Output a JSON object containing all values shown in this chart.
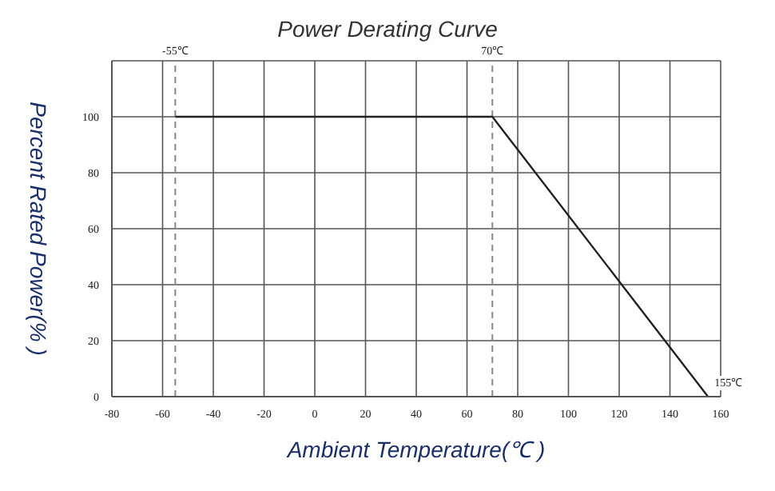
{
  "chart_data": {
    "type": "line",
    "title": "Power Derating Curve",
    "xlabel": "Ambient Temperature(℃ )",
    "ylabel": "Percent  Rated Power(% )",
    "x": [
      -55,
      70,
      155
    ],
    "series": [
      {
        "color": "#222222",
        "values": [
          100,
          100,
          0
        ]
      }
    ],
    "xlim": [
      -80,
      160
    ],
    "xticks": [
      -80,
      -60,
      -40,
      -20,
      0,
      20,
      40,
      60,
      80,
      100,
      120,
      140,
      160
    ],
    "ylim": [
      0,
      120
    ],
    "yticks": [
      0,
      20,
      40,
      60,
      80,
      100,
      {
        "value": 120,
        "label": null
      }
    ],
    "grid": true,
    "marker": "none",
    "line_style": "solid",
    "ref_lines": [
      {
        "axis": "x",
        "value": -55,
        "label": "-55℃",
        "color": "#888888",
        "line_style": "dashed"
      },
      {
        "axis": "x",
        "value": 70,
        "label": "70℃",
        "color": "#888888",
        "line_style": "dashed"
      }
    ],
    "annotations": [
      {
        "text": "155℃",
        "x": 155,
        "y": 0
      }
    ]
  }
}
